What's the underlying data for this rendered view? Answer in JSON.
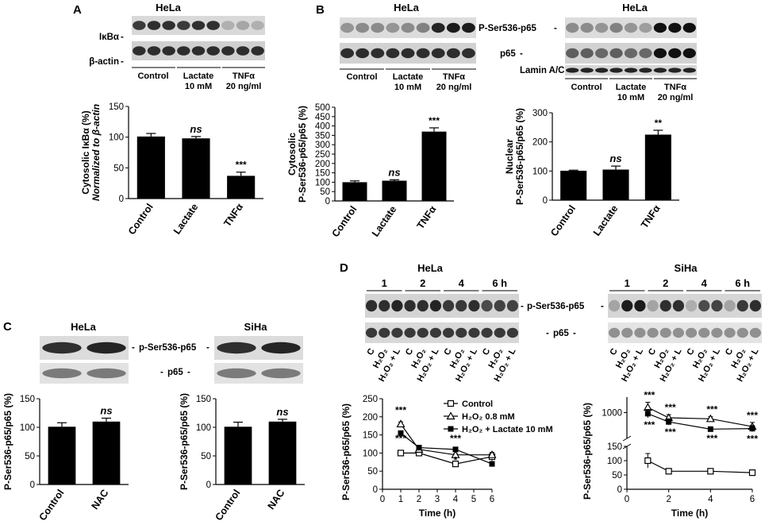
{
  "panels": {
    "A": {
      "letter": "A",
      "cell_line": "HeLa",
      "blot_labels": [
        "IκBα",
        "β-actin"
      ],
      "conditions": [
        "Control",
        "Lactate",
        "10 mM",
        "TNFα",
        "20 ng/ml"
      ]
    },
    "B": {
      "letter": "B",
      "cell_line_cyto": "HeLa",
      "cell_line_nuc": "HeLa",
      "blot_labels": [
        "P-Ser536-p65",
        "p65",
        "Lamin A/C"
      ],
      "conditions": [
        "Control",
        "Lactate",
        "10 mM",
        "TNFα",
        "20 ng/ml"
      ]
    },
    "C": {
      "letter": "C",
      "cell_lines": [
        "HeLa",
        "SiHa"
      ],
      "blot_labels": [
        "p-Ser536-p65",
        "p65"
      ]
    },
    "D": {
      "letter": "D",
      "cell_lines": [
        "HeLa",
        "SiHa"
      ],
      "blot_labels": [
        "p-Ser536-p65",
        "p65"
      ],
      "time_labels": [
        "1",
        "2",
        "4",
        "6 h"
      ],
      "lane_labels": [
        "C",
        "H₂O₂",
        "H₂O₂ + L"
      ]
    }
  },
  "chart_data": [
    {
      "id": "A-bar",
      "type": "bar",
      "categories": [
        "Control",
        "Lactate",
        "TNFα"
      ],
      "values": [
        101,
        98,
        37
      ],
      "errors": [
        5,
        3,
        6
      ],
      "annotations": [
        "",
        "ns",
        "***"
      ],
      "ylabel": "Cytosolic IκBα (%)",
      "ylabel2": "Normalized to β-actin",
      "ylim": [
        0,
        150
      ],
      "yticks": [
        0,
        50,
        100,
        150
      ],
      "color": "#000000"
    },
    {
      "id": "B-cyto-bar",
      "type": "bar",
      "categories": [
        "Control",
        "Lactate",
        "TNFα"
      ],
      "values": [
        100,
        108,
        370
      ],
      "errors": [
        7,
        5,
        20
      ],
      "annotations": [
        "",
        "ns",
        "***"
      ],
      "ylabel": "Cytosolic",
      "ylabel2": "P-Ser536-p65/p65 (%)",
      "ylim": [
        0,
        500
      ],
      "yticks": [
        0,
        50,
        100,
        150,
        200,
        250,
        300,
        350,
        400,
        450,
        500
      ],
      "color": "#000000"
    },
    {
      "id": "B-nuc-bar",
      "type": "bar",
      "categories": [
        "Control",
        "Lactate",
        "TNFα"
      ],
      "values": [
        101,
        105,
        225
      ],
      "errors": [
        2,
        12,
        15
      ],
      "annotations": [
        "",
        "ns",
        "**"
      ],
      "ylabel": "Nuclear",
      "ylabel2": "P-Ser536-p65/p65 (%)",
      "ylim": [
        0,
        300
      ],
      "yticks": [
        0,
        100,
        200,
        300
      ],
      "color": "#000000"
    },
    {
      "id": "C-hela-bar",
      "type": "bar",
      "categories": [
        "Control",
        "NAC"
      ],
      "values": [
        101,
        110
      ],
      "errors": [
        7,
        6
      ],
      "annotations": [
        "",
        "ns"
      ],
      "ylabel": "P-Ser536-p65/p65 (%)",
      "ylim": [
        0,
        150
      ],
      "yticks": [
        0,
        50,
        100,
        150
      ],
      "color": "#000000"
    },
    {
      "id": "C-siha-bar",
      "type": "bar",
      "categories": [
        "Control",
        "NAC"
      ],
      "values": [
        101,
        110
      ],
      "errors": [
        8,
        4
      ],
      "annotations": [
        "",
        "ns"
      ],
      "ylabel": "P-Ser536-p65/p65 (%)",
      "ylim": [
        0,
        150
      ],
      "yticks": [
        0,
        50,
        100,
        150
      ],
      "color": "#000000"
    },
    {
      "id": "D-hela-line",
      "type": "line",
      "xlabel": "Time (h)",
      "ylabel": "P-Ser536-p65/p65 (%)",
      "xlim": [
        0,
        6
      ],
      "xticks": [
        0,
        1,
        2,
        3,
        4,
        5,
        6
      ],
      "ylim": [
        0,
        250
      ],
      "yticks": [
        0,
        50,
        100,
        150,
        200,
        250
      ],
      "series": [
        {
          "name": "Control",
          "marker": "open-square",
          "x": [
            1,
            2,
            4,
            6
          ],
          "y": [
            100,
            100,
            70,
            90
          ],
          "errors": [
            2,
            3,
            4,
            12
          ]
        },
        {
          "name": "H₂O₂ 0.8 mM",
          "marker": "open-triangle",
          "x": [
            1,
            2,
            4,
            6
          ],
          "y": [
            180,
            110,
            95,
            95
          ],
          "errors": [
            6,
            3,
            3,
            3
          ]
        },
        {
          "name": "H₂O₂ + Lactate 10 mM",
          "marker": "filled-square",
          "x": [
            1,
            2,
            4,
            6
          ],
          "y": [
            155,
            115,
            110,
            70
          ],
          "errors": [
            4,
            3,
            3,
            4
          ]
        }
      ],
      "annotations": [
        {
          "x": 1,
          "text": "***",
          "pos": "above"
        },
        {
          "x": 1,
          "text": "***",
          "pos": "below"
        },
        {
          "x": 4,
          "text": "***",
          "pos": "above"
        },
        {
          "x": 4,
          "text": "*",
          "pos": "mid"
        }
      ]
    },
    {
      "id": "D-siha-line",
      "type": "line",
      "xlabel": "Time (h)",
      "ylabel": "P-Ser536-p65/p65 (%)",
      "xlim": [
        0,
        6
      ],
      "xticks": [
        0,
        2,
        4,
        6
      ],
      "ylim_lower": [
        0,
        150
      ],
      "yticks_lower": [
        0,
        50,
        100,
        150
      ],
      "ylim_upper": [
        500,
        1300
      ],
      "yticks_upper": [
        1000
      ],
      "axis_break": true,
      "series": [
        {
          "name": "Control",
          "marker": "open-square",
          "x": [
            1,
            2,
            4,
            6
          ],
          "y": [
            100,
            63,
            63,
            58
          ],
          "errors": [
            25,
            4,
            3,
            3
          ]
        },
        {
          "name": "H₂O₂ 0.8 mM",
          "marker": "open-triangle",
          "x": [
            1,
            2,
            4,
            6
          ],
          "y": [
            1100,
            900,
            880,
            730
          ],
          "errors": [
            100,
            60,
            40,
            80
          ]
        },
        {
          "name": "H₂O₂ + Lactate 10 mM",
          "marker": "filled-square",
          "x": [
            1,
            2,
            4,
            6
          ],
          "y": [
            980,
            820,
            680,
            690
          ],
          "errors": [
            80,
            60,
            40,
            60
          ]
        }
      ],
      "annotations": [
        {
          "x": 1,
          "text": "***",
          "pos": "above"
        },
        {
          "x": 1,
          "text": "***",
          "pos": "below"
        },
        {
          "x": 2,
          "text": "***",
          "pos": "above"
        },
        {
          "x": 2,
          "text": "***",
          "pos": "below"
        },
        {
          "x": 4,
          "text": "***",
          "pos": "above"
        },
        {
          "x": 4,
          "text": "***",
          "pos": "below"
        },
        {
          "x": 6,
          "text": "***",
          "pos": "above"
        },
        {
          "x": 6,
          "text": "***",
          "pos": "below"
        }
      ]
    }
  ]
}
